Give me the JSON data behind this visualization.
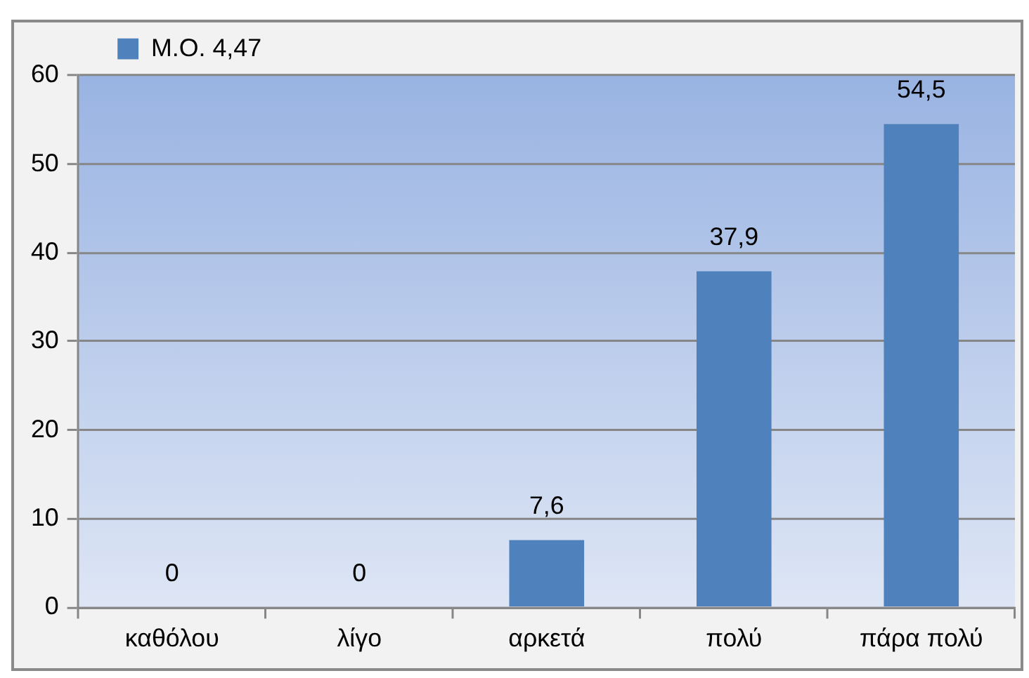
{
  "chart_data": {
    "type": "bar",
    "categories": [
      "καθόλου",
      "λίγο",
      "αρκετά",
      "πολύ",
      "πάρα πολύ"
    ],
    "series": [
      {
        "name": "Μ.Ο. 4,47",
        "color": "#4f81bd",
        "values": [
          0,
          0,
          7.6,
          37.9,
          54.5
        ],
        "value_labels": [
          "0",
          "0",
          "7,6",
          "37,9",
          "54,5"
        ]
      }
    ],
    "ylim": [
      0,
      60
    ],
    "yticks": [
      0,
      10,
      20,
      30,
      40,
      50,
      60
    ],
    "grid": "y",
    "legend": "top left"
  }
}
